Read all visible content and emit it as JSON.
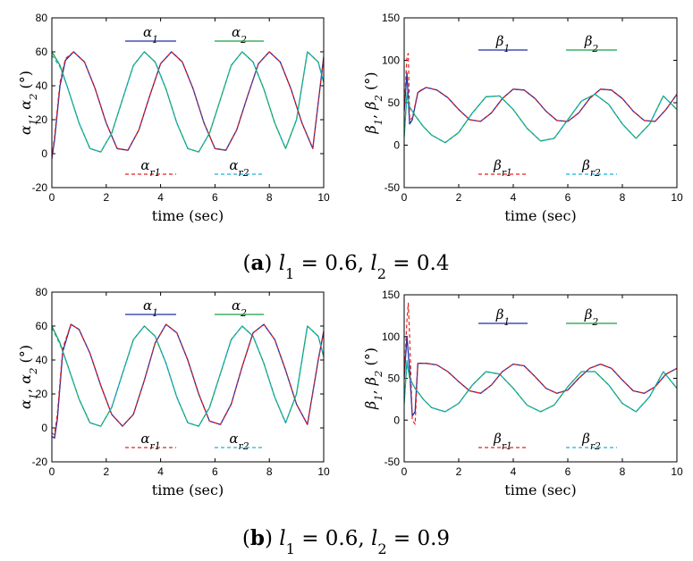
{
  "captions": [
    {
      "tag": "a",
      "text": "l1 = 0.6, l2 = 0.4"
    },
    {
      "tag": "b",
      "text": "l1 = 0.6, l2 = 0.9"
    }
  ],
  "colors": {
    "alpha1": "#1f2fa6",
    "alpha2": "#18a040",
    "ref1": "#e32020",
    "ref2": "#1ab0dd"
  },
  "chart_data": [
    {
      "type": "line",
      "panel": "a-left",
      "xlabel": "time (sec)",
      "ylabel": "α1, α2 (°)",
      "xlim": [
        0,
        10
      ],
      "ylim": [
        -20,
        80
      ],
      "xticks": [
        0,
        2,
        4,
        6,
        8,
        10
      ],
      "yticks": [
        -20,
        0,
        20,
        40,
        60,
        80
      ],
      "legend": [
        "α1",
        "α2",
        "αr1",
        "αr2"
      ],
      "series": [
        {
          "name": "α1",
          "x": [
            0,
            0.1,
            0.3,
            0.5,
            0.8,
            1.2,
            1.6,
            2.0,
            2.4,
            2.8,
            3.2,
            3.6,
            4.0,
            4.4,
            4.8,
            5.2,
            5.6,
            6.0,
            6.4,
            6.8,
            7.2,
            7.6,
            8.0,
            8.4,
            8.8,
            9.2,
            9.6,
            10
          ],
          "y": [
            -3,
            8,
            40,
            55,
            60,
            54,
            38,
            18,
            3,
            2,
            14,
            34,
            53,
            60,
            54,
            38,
            18,
            3,
            2,
            14,
            34,
            53,
            60,
            54,
            38,
            18,
            3,
            57
          ]
        },
        {
          "name": "α2",
          "x": [
            0,
            0.3,
            0.6,
            1.0,
            1.4,
            1.8,
            2.2,
            2.6,
            3.0,
            3.4,
            3.8,
            4.2,
            4.6,
            5.0,
            5.4,
            5.8,
            6.2,
            6.6,
            7.0,
            7.4,
            7.8,
            8.2,
            8.6,
            9.0,
            9.4,
            9.8,
            10
          ],
          "y": [
            60,
            52,
            38,
            18,
            3,
            1,
            12,
            32,
            52,
            60,
            54,
            38,
            18,
            3,
            1,
            12,
            32,
            52,
            60,
            54,
            38,
            18,
            3,
            20,
            60,
            54,
            42
          ]
        },
        {
          "name": "αr1",
          "x": [
            0,
            0.1,
            0.3,
            0.5,
            0.8,
            1.2,
            1.6,
            2.0,
            2.4,
            2.8,
            3.2,
            3.6,
            4.0,
            4.4,
            4.8,
            5.2,
            5.6,
            6.0,
            6.4,
            6.8,
            7.2,
            7.6,
            8.0,
            8.4,
            8.8,
            9.2,
            9.6,
            10
          ],
          "y": [
            -2,
            10,
            42,
            56,
            60,
            54,
            38,
            18,
            3,
            2,
            14,
            34,
            53,
            60,
            54,
            38,
            18,
            3,
            2,
            14,
            34,
            53,
            60,
            54,
            38,
            18,
            3,
            57
          ]
        },
        {
          "name": "αr2",
          "x": [
            0,
            0.3,
            0.6,
            1.0,
            1.4,
            1.8,
            2.2,
            2.6,
            3.0,
            3.4,
            3.8,
            4.2,
            4.6,
            5.0,
            5.4,
            5.8,
            6.2,
            6.6,
            7.0,
            7.4,
            7.8,
            8.2,
            8.6,
            9.0,
            9.4,
            9.8,
            10
          ],
          "y": [
            58,
            51,
            38,
            18,
            3,
            1,
            12,
            32,
            52,
            60,
            54,
            38,
            18,
            3,
            1,
            12,
            32,
            52,
            60,
            54,
            38,
            18,
            3,
            20,
            60,
            54,
            42
          ]
        }
      ]
    },
    {
      "type": "line",
      "panel": "a-right",
      "xlabel": "time (sec)",
      "ylabel": "β1, β2 (°)",
      "xlim": [
        0,
        10
      ],
      "ylim": [
        -50,
        150
      ],
      "xticks": [
        0,
        2,
        4,
        6,
        8,
        10
      ],
      "yticks": [
        -50,
        0,
        50,
        100,
        150
      ],
      "legend": [
        "β1",
        "β2",
        "βr1",
        "βr2"
      ],
      "series": [
        {
          "name": "β1",
          "x": [
            0,
            0.1,
            0.2,
            0.3,
            0.5,
            0.8,
            1.2,
            1.6,
            2.0,
            2.4,
            2.8,
            3.2,
            3.6,
            4.0,
            4.4,
            4.8,
            5.2,
            5.6,
            6.0,
            6.4,
            6.8,
            7.2,
            7.6,
            8.0,
            8.4,
            8.8,
            9.2,
            9.6,
            10
          ],
          "y": [
            40,
            85,
            25,
            30,
            62,
            68,
            65,
            56,
            42,
            30,
            28,
            38,
            55,
            66,
            65,
            55,
            40,
            29,
            28,
            38,
            55,
            66,
            65,
            55,
            40,
            29,
            28,
            42,
            60
          ]
        },
        {
          "name": "β2",
          "x": [
            0,
            0.1,
            0.2,
            0.4,
            0.7,
            1.0,
            1.5,
            2.0,
            2.5,
            3.0,
            3.5,
            4.0,
            4.5,
            5.0,
            5.5,
            6.0,
            6.5,
            7.0,
            7.5,
            8.0,
            8.5,
            9.0,
            9.5,
            10
          ],
          "y": [
            10,
            60,
            45,
            35,
            22,
            12,
            3,
            15,
            38,
            57,
            58,
            42,
            20,
            5,
            8,
            30,
            52,
            60,
            48,
            25,
            8,
            25,
            58,
            42
          ]
        },
        {
          "name": "βr1",
          "x": [
            0,
            0.1,
            0.15,
            0.2,
            0.3,
            0.5,
            0.8,
            1.2,
            1.6,
            2.0,
            2.4,
            2.8,
            3.2,
            3.6,
            4.0,
            4.4,
            4.8,
            5.2,
            5.6,
            6.0,
            6.4,
            6.8,
            7.2,
            7.6,
            8.0,
            8.4,
            8.8,
            9.2,
            9.6,
            10
          ],
          "y": [
            40,
            105,
            108,
            30,
            32,
            63,
            68,
            65,
            56,
            42,
            30,
            28,
            38,
            55,
            66,
            65,
            55,
            40,
            29,
            28,
            38,
            55,
            66,
            65,
            55,
            40,
            29,
            28,
            42,
            60
          ]
        },
        {
          "name": "βr2",
          "x": [
            0,
            0.1,
            0.2,
            0.4,
            0.7,
            1.0,
            1.5,
            2.0,
            2.5,
            3.0,
            3.5,
            4.0,
            4.5,
            5.0,
            5.5,
            6.0,
            6.5,
            7.0,
            7.5,
            8.0,
            8.5,
            9.0,
            9.5,
            10
          ],
          "y": [
            10,
            62,
            45,
            35,
            22,
            12,
            3,
            15,
            38,
            57,
            58,
            42,
            20,
            5,
            8,
            30,
            52,
            60,
            48,
            25,
            8,
            25,
            58,
            42
          ]
        }
      ]
    },
    {
      "type": "line",
      "panel": "b-left",
      "xlabel": "time (sec)",
      "ylabel": "α1, α2 (°)",
      "xlim": [
        0,
        10
      ],
      "ylim": [
        -20,
        80
      ],
      "xticks": [
        0,
        2,
        4,
        6,
        8,
        10
      ],
      "yticks": [
        -20,
        0,
        20,
        40,
        60,
        80
      ],
      "legend": [
        "α1",
        "α2",
        "αr1",
        "αr2"
      ],
      "series": [
        {
          "name": "α1",
          "x": [
            0,
            0.1,
            0.2,
            0.4,
            0.7,
            1.0,
            1.4,
            1.8,
            2.2,
            2.6,
            3.0,
            3.4,
            3.8,
            4.2,
            4.6,
            5.0,
            5.4,
            5.8,
            6.2,
            6.6,
            7.0,
            7.4,
            7.8,
            8.2,
            8.6,
            9.0,
            9.4,
            9.8,
            10
          ],
          "y": [
            -5,
            -6,
            5,
            45,
            61,
            58,
            44,
            25,
            8,
            1,
            8,
            28,
            50,
            61,
            56,
            40,
            20,
            4,
            2,
            14,
            36,
            56,
            61,
            52,
            34,
            14,
            2,
            40,
            57
          ]
        },
        {
          "name": "α2",
          "x": [
            0,
            0.3,
            0.6,
            1.0,
            1.4,
            1.8,
            2.2,
            2.6,
            3.0,
            3.4,
            3.8,
            4.2,
            4.6,
            5.0,
            5.4,
            5.8,
            6.2,
            6.6,
            7.0,
            7.4,
            7.8,
            8.2,
            8.6,
            9.0,
            9.4,
            9.8,
            10
          ],
          "y": [
            60,
            50,
            36,
            17,
            3,
            1,
            12,
            32,
            52,
            60,
            54,
            38,
            18,
            3,
            1,
            12,
            32,
            52,
            60,
            54,
            38,
            18,
            3,
            20,
            60,
            54,
            42
          ]
        },
        {
          "name": "αr1",
          "x": [
            0,
            0.1,
            0.2,
            0.4,
            0.7,
            1.0,
            1.4,
            1.8,
            2.2,
            2.6,
            3.0,
            3.4,
            3.8,
            4.2,
            4.6,
            5.0,
            5.4,
            5.8,
            6.2,
            6.6,
            7.0,
            7.4,
            7.8,
            8.2,
            8.6,
            9.0,
            9.4,
            9.8,
            10
          ],
          "y": [
            -3,
            -4,
            8,
            47,
            61,
            58,
            44,
            25,
            8,
            1,
            8,
            28,
            50,
            61,
            56,
            40,
            20,
            4,
            2,
            14,
            36,
            56,
            61,
            52,
            34,
            14,
            2,
            40,
            57
          ]
        },
        {
          "name": "αr2",
          "x": [
            0,
            0.3,
            0.6,
            1.0,
            1.4,
            1.8,
            2.2,
            2.6,
            3.0,
            3.4,
            3.8,
            4.2,
            4.6,
            5.0,
            5.4,
            5.8,
            6.2,
            6.6,
            7.0,
            7.4,
            7.8,
            8.2,
            8.6,
            9.0,
            9.4,
            9.8,
            10
          ],
          "y": [
            59,
            49,
            36,
            17,
            3,
            1,
            12,
            32,
            52,
            60,
            54,
            38,
            18,
            3,
            1,
            12,
            32,
            52,
            60,
            54,
            38,
            18,
            3,
            20,
            60,
            54,
            42
          ]
        }
      ]
    },
    {
      "type": "line",
      "panel": "b-right",
      "xlabel": "time (sec)",
      "ylabel": "β1, β2 (°)",
      "xlim": [
        0,
        10
      ],
      "ylim": [
        -50,
        150
      ],
      "xticks": [
        0,
        2,
        4,
        6,
        8,
        10
      ],
      "yticks": [
        -50,
        0,
        50,
        100,
        150
      ],
      "legend": [
        "β1",
        "β2",
        "βr1",
        "βr2"
      ],
      "series": [
        {
          "name": "β1",
          "x": [
            0,
            0.1,
            0.2,
            0.3,
            0.4,
            0.5,
            0.8,
            1.2,
            1.6,
            2.0,
            2.4,
            2.8,
            3.2,
            3.6,
            4.0,
            4.4,
            4.8,
            5.2,
            5.6,
            6.0,
            6.4,
            6.8,
            7.2,
            7.6,
            8.0,
            8.4,
            8.8,
            9.2,
            9.6,
            10
          ],
          "y": [
            50,
            100,
            60,
            5,
            10,
            68,
            68,
            66,
            58,
            46,
            35,
            32,
            42,
            58,
            67,
            65,
            52,
            38,
            32,
            36,
            50,
            62,
            67,
            62,
            48,
            35,
            32,
            40,
            55,
            62
          ]
        },
        {
          "name": "β2",
          "x": [
            0,
            0.1,
            0.2,
            0.4,
            0.7,
            1.0,
            1.5,
            2.0,
            2.5,
            3.0,
            3.5,
            4.0,
            4.5,
            5.0,
            5.5,
            6.0,
            6.5,
            7.0,
            7.5,
            8.0,
            8.5,
            9.0,
            9.5,
            10
          ],
          "y": [
            20,
            70,
            50,
            38,
            25,
            15,
            10,
            20,
            42,
            58,
            55,
            38,
            18,
            10,
            18,
            40,
            58,
            58,
            42,
            20,
            10,
            28,
            58,
            38
          ]
        },
        {
          "name": "βr1",
          "x": [
            0,
            0.1,
            0.15,
            0.2,
            0.3,
            0.4,
            0.5,
            0.8,
            1.2,
            1.6,
            2.0,
            2.4,
            2.8,
            3.2,
            3.6,
            4.0,
            4.4,
            4.8,
            5.2,
            5.6,
            6.0,
            6.4,
            6.8,
            7.2,
            7.6,
            8.0,
            8.4,
            8.8,
            9.2,
            9.6,
            10
          ],
          "y": [
            50,
            120,
            140,
            100,
            0,
            -5,
            68,
            68,
            66,
            58,
            46,
            35,
            32,
            42,
            58,
            67,
            65,
            52,
            38,
            32,
            36,
            50,
            62,
            67,
            62,
            48,
            35,
            32,
            40,
            55,
            62
          ]
        },
        {
          "name": "βr2",
          "x": [
            0,
            0.1,
            0.2,
            0.4,
            0.7,
            1.0,
            1.5,
            2.0,
            2.5,
            3.0,
            3.5,
            4.0,
            4.5,
            5.0,
            5.5,
            6.0,
            6.5,
            7.0,
            7.5,
            8.0,
            8.5,
            9.0,
            9.5,
            10
          ],
          "y": [
            20,
            72,
            50,
            38,
            25,
            15,
            10,
            20,
            42,
            58,
            55,
            38,
            18,
            10,
            18,
            40,
            58,
            58,
            42,
            20,
            10,
            28,
            58,
            38
          ]
        }
      ]
    }
  ]
}
